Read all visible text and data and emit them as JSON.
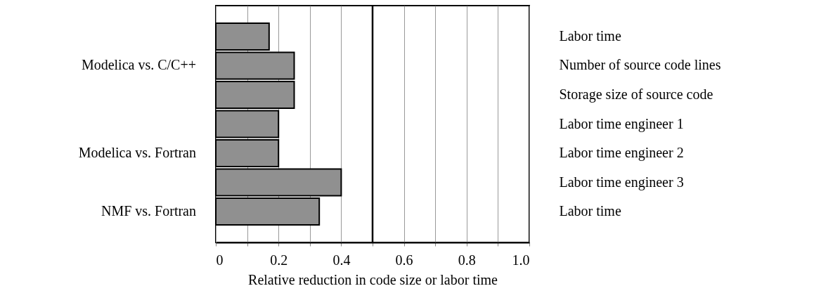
{
  "chart_data": {
    "type": "bar",
    "orientation": "horizontal",
    "categories": [
      "Labor time",
      "Number of source code lines",
      "Storage size of source code",
      "Labor time engineer 1",
      "Labor time engineer 2",
      "Labor time engineer 3",
      "Labor time"
    ],
    "values": [
      0.17,
      0.25,
      0.25,
      0.2,
      0.2,
      0.4,
      0.33
    ],
    "color": "#909090",
    "xlabel": "Relative reduction in code size or labor time",
    "xlim": [
      0,
      1.0
    ],
    "xticks": [
      0,
      {
        "value": 0.1,
        "label": null
      },
      0.2,
      {
        "value": 0.3,
        "label": null
      },
      0.4,
      {
        "value": 0.5,
        "label": null
      },
      0.6,
      {
        "value": 0.7,
        "label": null
      },
      0.8,
      {
        "value": 0.9,
        "label": null
      },
      {
        "value": 1.0,
        "label": "1.0"
      }
    ],
    "grid": "x",
    "ref_lines": [
      {
        "axis": "x",
        "value": 0.5,
        "color": "#000000"
      }
    ],
    "annotations": [
      "Modelica vs. C/C++",
      "Modelica vs. Fortran",
      "NMF vs. Fortran"
    ]
  }
}
